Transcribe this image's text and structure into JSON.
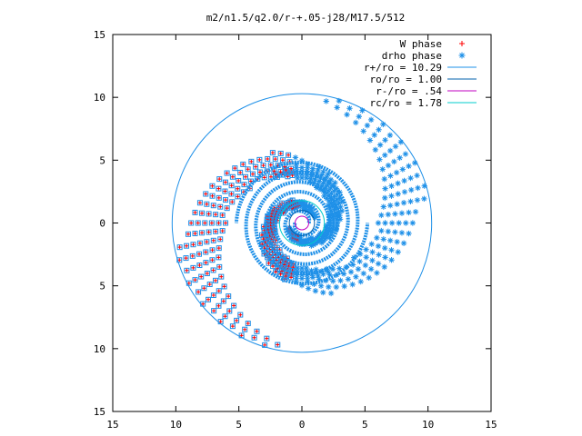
{
  "colors": {
    "axis": "#000000",
    "w_phase": "#ff0000",
    "drho_phase": "#1e90e8",
    "r_plus": "#1e90e8",
    "ro": "#0060ad",
    "r_minus": "#c000c0",
    "rc": "#00cccc"
  },
  "chart_data": {
    "type": "scatter",
    "title": "m2/n1.5/q2.0/r-+.05-j28/M17.5/512",
    "xlabel": "",
    "ylabel": "",
    "xlim": [
      -15,
      15
    ],
    "ylim": [
      -15,
      15
    ],
    "x_ticks": [
      "15",
      "10",
      "5",
      "0",
      "5",
      "10",
      "15"
    ],
    "y_ticks": [
      "15",
      "10",
      "5",
      "0",
      "5",
      "10",
      "15"
    ],
    "grid": false,
    "legend_position": "top-right",
    "legend": [
      {
        "label": "W phase",
        "marker": "plus",
        "color": "#ff0000"
      },
      {
        "label": "drho phase",
        "marker": "star",
        "color": "#1e90e8"
      },
      {
        "label": "r+/ro = 10.29",
        "marker": "line",
        "color": "#1e90e8"
      },
      {
        "label": "ro/ro = 1.00",
        "marker": "line",
        "color": "#0060ad"
      },
      {
        "label": "r-/ro =  .54",
        "marker": "line",
        "color": "#c000c0"
      },
      {
        "label": "rc/ro = 1.78",
        "marker": "line",
        "color": "#00cccc"
      }
    ],
    "circles": [
      {
        "name": "r+/ro",
        "radius": 10.29
      },
      {
        "name": "ro/ro",
        "radius": 1.0
      },
      {
        "name": "r-/ro",
        "radius": 0.54
      },
      {
        "name": "rc/ro",
        "radius": 1.78
      }
    ],
    "spiral": {
      "arms": 2,
      "turns": 3.0,
      "inner_radius": 0.54,
      "outer_radius": 10.29
    }
  }
}
